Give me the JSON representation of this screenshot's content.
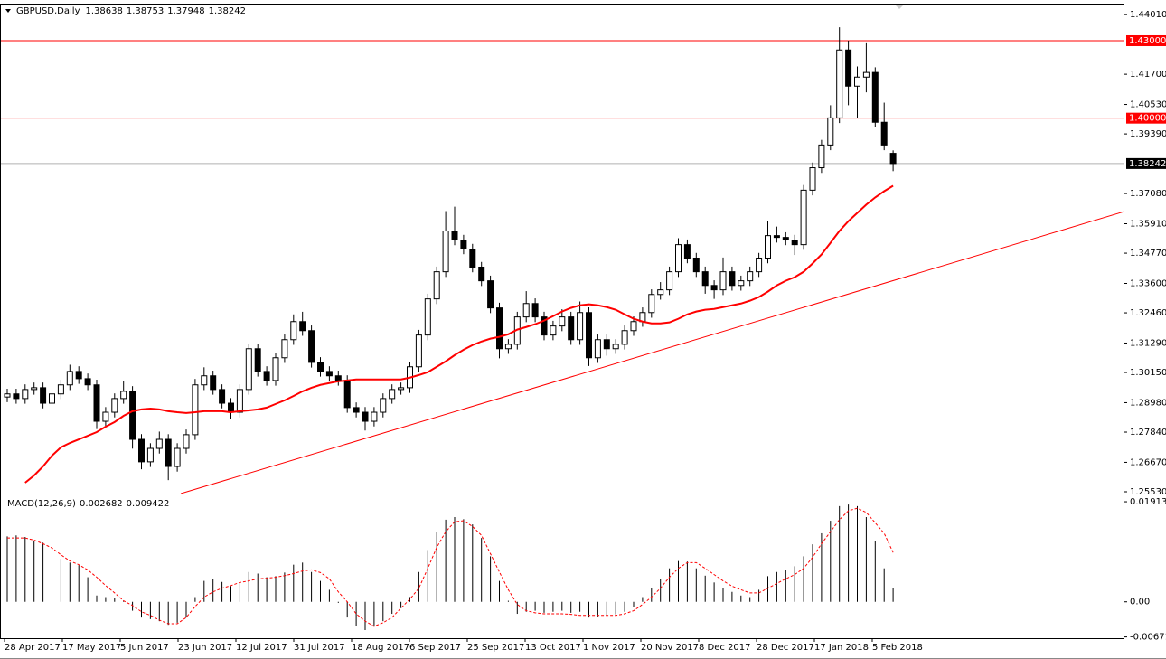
{
  "chart_data": [
    {
      "type": "candlestick",
      "title": "GBPUSD,Daily",
      "open": [
        1.292,
        1.2932,
        1.2914,
        1.2949,
        1.2956,
        1.2896,
        1.2932,
        1.2967,
        1.3019,
        1.2991,
        1.2967,
        1.2826,
        1.2861,
        1.2914,
        1.2942,
        1.2756,
        1.2669,
        1.2721,
        1.2756,
        1.2651,
        1.2721,
        1.2774,
        1.2967,
        1.3002,
        1.2949,
        1.2896,
        1.2861,
        1.2949,
        1.3107,
        1.3019,
        1.2984,
        1.3072,
        1.3142,
        1.3212,
        1.3177,
        1.3054,
        1.3019,
        1.3002,
        1.2984,
        1.2879,
        1.2861,
        1.2826,
        1.2861,
        1.2914,
        1.2949,
        1.2956,
        1.3037,
        1.316,
        1.33,
        1.3405,
        1.3563,
        1.3528,
        1.3493,
        1.3423,
        1.337,
        1.3265,
        1.3107,
        1.3124,
        1.323,
        1.3282,
        1.323,
        1.316,
        1.3195,
        1.323,
        1.3142,
        1.3247,
        1.3072,
        1.3142,
        1.3107,
        1.3124,
        1.3177,
        1.3212,
        1.3247,
        1.3317,
        1.3335,
        1.3405,
        1.351,
        1.3458,
        1.3405,
        1.3352,
        1.3335,
        1.3405,
        1.3352,
        1.337,
        1.3405,
        1.3458,
        1.3545,
        1.3538,
        1.3528,
        1.351,
        1.3721,
        1.3808,
        1.3896,
        1.4001,
        1.4264,
        1.4124,
        1.4159,
        1.4177,
        1.3984,
        1.38638
      ],
      "high": [
        1.2952,
        1.2952,
        1.2969,
        1.2976,
        1.2976,
        1.2952,
        1.2987,
        1.3045,
        1.3039,
        1.3011,
        1.2987,
        1.2881,
        1.2934,
        1.2982,
        1.2962,
        1.2776,
        1.2741,
        1.2786,
        1.2776,
        1.2741,
        1.2794,
        1.299,
        1.3035,
        1.3022,
        1.2969,
        1.2916,
        1.2969,
        1.3127,
        1.3127,
        1.3039,
        1.3092,
        1.3162,
        1.324,
        1.325,
        1.3197,
        1.3074,
        1.3039,
        1.3022,
        1.3004,
        1.2899,
        1.2881,
        1.2881,
        1.2934,
        1.2969,
        1.2976,
        1.3057,
        1.318,
        1.332,
        1.3425,
        1.364,
        1.3657,
        1.3548,
        1.3513,
        1.3443,
        1.339,
        1.3285,
        1.3144,
        1.325,
        1.333,
        1.3302,
        1.325,
        1.3215,
        1.326,
        1.325,
        1.329,
        1.3267,
        1.3162,
        1.3162,
        1.3144,
        1.3197,
        1.3232,
        1.3267,
        1.3337,
        1.3365,
        1.3425,
        1.3535,
        1.353,
        1.3478,
        1.3425,
        1.3372,
        1.346,
        1.3425,
        1.339,
        1.3425,
        1.3478,
        1.36,
        1.358,
        1.3558,
        1.3548,
        1.3741,
        1.3828,
        1.3916,
        1.405,
        1.4352,
        1.43,
        1.42,
        1.429,
        1.4197,
        1.406,
        1.38753
      ],
      "low": [
        1.29,
        1.2894,
        1.2894,
        1.2929,
        1.2876,
        1.2876,
        1.2912,
        1.2947,
        1.2971,
        1.2947,
        1.2796,
        1.2806,
        1.2841,
        1.2894,
        1.272,
        1.264,
        1.2649,
        1.2701,
        1.2598,
        1.2631,
        1.2701,
        1.2754,
        1.2947,
        1.2929,
        1.2876,
        1.2836,
        1.2841,
        1.2929,
        1.2999,
        1.2964,
        1.2964,
        1.3052,
        1.3122,
        1.3157,
        1.3034,
        1.2999,
        1.2982,
        1.2964,
        1.2859,
        1.2841,
        1.279,
        1.2806,
        1.2841,
        1.2894,
        1.2929,
        1.2936,
        1.3017,
        1.314,
        1.328,
        1.3385,
        1.3508,
        1.3473,
        1.3403,
        1.335,
        1.3245,
        1.307,
        1.3087,
        1.3104,
        1.321,
        1.321,
        1.314,
        1.314,
        1.3175,
        1.3122,
        1.3122,
        1.304,
        1.3052,
        1.308,
        1.3087,
        1.3104,
        1.3157,
        1.3192,
        1.3227,
        1.3297,
        1.3315,
        1.3385,
        1.3438,
        1.3385,
        1.332,
        1.33,
        1.3315,
        1.3332,
        1.3332,
        1.335,
        1.3385,
        1.3438,
        1.3518,
        1.3508,
        1.347,
        1.349,
        1.3701,
        1.3788,
        1.3876,
        1.3981,
        1.405,
        1.4,
        1.41,
        1.3964,
        1.3876,
        1.37948
      ],
      "close": [
        1.2932,
        1.2914,
        1.2949,
        1.2956,
        1.2896,
        1.2932,
        1.2967,
        1.3019,
        1.2991,
        1.2967,
        1.2826,
        1.2861,
        1.2914,
        1.2942,
        1.2756,
        1.2669,
        1.2721,
        1.2756,
        1.2651,
        1.2721,
        1.2774,
        1.2967,
        1.3002,
        1.2949,
        1.2896,
        1.2861,
        1.2949,
        1.3107,
        1.3019,
        1.2984,
        1.3072,
        1.3142,
        1.3212,
        1.3177,
        1.3054,
        1.3019,
        1.3002,
        1.2984,
        1.2879,
        1.2861,
        1.2826,
        1.2861,
        1.2914,
        1.2949,
        1.2956,
        1.3037,
        1.316,
        1.33,
        1.3405,
        1.3563,
        1.3528,
        1.3493,
        1.3423,
        1.337,
        1.3265,
        1.3107,
        1.3124,
        1.323,
        1.3282,
        1.323,
        1.316,
        1.3195,
        1.323,
        1.3142,
        1.3247,
        1.3072,
        1.3142,
        1.3107,
        1.3124,
        1.3177,
        1.3212,
        1.3247,
        1.3317,
        1.3335,
        1.3405,
        1.351,
        1.3458,
        1.3405,
        1.3352,
        1.3335,
        1.3405,
        1.3352,
        1.337,
        1.3405,
        1.3458,
        1.3545,
        1.3538,
        1.3528,
        1.351,
        1.3721,
        1.3808,
        1.3896,
        1.4001,
        1.4264,
        1.4124,
        1.4159,
        1.4177,
        1.3984,
        1.3896,
        1.38242
      ],
      "up_color": "#ffffff",
      "down_color": "#000000",
      "wick_color": "#000000",
      "moving_average": {
        "color": "#ff0000",
        "values": [
          null,
          null,
          1.2588,
          1.2616,
          1.2651,
          1.2693,
          1.2725,
          1.2742,
          1.2756,
          1.277,
          1.2784,
          1.2805,
          1.2823,
          1.2847,
          1.2865,
          1.2872,
          1.2875,
          1.2872,
          1.2865,
          1.2861,
          1.2858,
          1.2861,
          1.2865,
          1.2865,
          1.2865,
          1.2861,
          1.2865,
          1.2868,
          1.2872,
          1.2879,
          1.2893,
          1.2907,
          1.2924,
          1.2942,
          1.2956,
          1.2967,
          1.2974,
          1.2981,
          1.2984,
          1.2988,
          1.2988,
          1.2988,
          1.2988,
          1.2988,
          1.2988,
          1.2995,
          1.3005,
          1.3016,
          1.3037,
          1.3058,
          1.3082,
          1.3103,
          1.3121,
          1.3135,
          1.3146,
          1.3153,
          1.3163,
          1.3181,
          1.3191,
          1.3202,
          1.3216,
          1.3233,
          1.3251,
          1.3265,
          1.3275,
          1.3279,
          1.3275,
          1.3268,
          1.3258,
          1.324,
          1.3223,
          1.3212,
          1.3205,
          1.3205,
          1.3209,
          1.3223,
          1.324,
          1.3251,
          1.3258,
          1.3261,
          1.3268,
          1.3275,
          1.3282,
          1.3293,
          1.3307,
          1.3328,
          1.3352,
          1.337,
          1.3384,
          1.3405,
          1.3437,
          1.3472,
          1.3517,
          1.3563,
          1.3601,
          1.3633,
          1.3665,
          1.3693,
          1.3717,
          1.3738
        ]
      },
      "levels": [
        {
          "value": 1.43,
          "label": "1.43000"
        },
        {
          "value": 1.4,
          "label": "1.40000"
        }
      ],
      "level_color": "#ff0000",
      "trendline": {
        "from": {
          "bar": 19.4,
          "price": 1.2546
        },
        "to": {
          "bar": 125,
          "price": 1.364
        }
      },
      "ylim": [
        1.2546,
        1.444
      ],
      "yticks": [
        {
          "value": 1.4401,
          "label": "1.44010"
        },
        {
          "value": 1.417,
          "label": "1.41700"
        },
        {
          "value": 1.4053,
          "label": "1.40530"
        },
        {
          "value": 1.3939,
          "label": "1.39390"
        },
        {
          "value": 1.3708,
          "label": "1.37080"
        },
        {
          "value": 1.3591,
          "label": "1.35910"
        },
        {
          "value": 1.3477,
          "label": "1.34770"
        },
        {
          "value": 1.336,
          "label": "1.33600"
        },
        {
          "value": 1.3246,
          "label": "1.32460"
        },
        {
          "value": 1.3129,
          "label": "1.31290"
        },
        {
          "value": 1.3015,
          "label": "1.30150"
        },
        {
          "value": 1.2898,
          "label": "1.28980"
        },
        {
          "value": 1.2784,
          "label": "1.27840"
        },
        {
          "value": 1.2667,
          "label": "1.26670"
        },
        {
          "value": 1.2553,
          "label": "1.25530"
        }
      ],
      "x_labels": [
        "28 Apr 2017",
        "17 May 2017",
        "5 Jun 2017",
        "23 Jun 2017",
        "12 Jul 2017",
        "31 Jul 2017",
        "18 Aug 2017",
        "6 Sep 2017",
        "25 Sep 2017",
        "13 Oct 2017",
        "1 Nov 2017",
        "20 Nov 2017",
        "8 Dec 2017",
        "28 Dec 2017",
        "17 Jan 2018",
        "5 Feb 2018"
      ]
    },
    {
      "type": "macd",
      "title": "MACD(12,26,9)",
      "histogram": {
        "color": "#000000",
        "values": [
          0.0125,
          0.0127,
          0.0124,
          0.0117,
          0.0113,
          0.0104,
          0.0082,
          0.0075,
          0.007,
          0.0047,
          0.0012,
          0.0009,
          0.0007,
          0.0002,
          -0.0017,
          -0.003,
          -0.0033,
          -0.0037,
          -0.0044,
          -0.004,
          -0.003,
          0.0009,
          0.004,
          0.0044,
          0.0038,
          0.003,
          0.0035,
          0.0057,
          0.0054,
          0.0047,
          0.0049,
          0.0056,
          0.0071,
          0.0075,
          0.0057,
          0.004,
          0.0023,
          -0.0002,
          -0.003,
          -0.0047,
          -0.0054,
          -0.0047,
          -0.0037,
          -0.0023,
          -0.0012,
          0.0009,
          0.0057,
          0.0099,
          0.0134,
          0.0157,
          0.0162,
          0.0158,
          0.0148,
          0.0122,
          0.0087,
          0.004,
          0.0002,
          -0.0023,
          -0.0019,
          -0.0017,
          -0.0021,
          -0.0019,
          -0.0017,
          -0.0021,
          -0.0019,
          -0.003,
          -0.0028,
          -0.0026,
          -0.0024,
          -0.0019,
          -0.0009,
          0.0009,
          0.0026,
          0.0044,
          0.0064,
          0.0078,
          0.0077,
          0.0064,
          0.005,
          0.0037,
          0.0026,
          0.0019,
          0.0012,
          0.0009,
          0.0023,
          0.0049,
          0.0057,
          0.0061,
          0.0068,
          0.0087,
          0.011,
          0.0131,
          0.0155,
          0.0183,
          0.0186,
          0.0183,
          0.0162,
          0.0117,
          0.0064,
          0.002682
        ]
      },
      "signal": {
        "color": "#ff0000",
        "values": [
          0.0122,
          0.0122,
          0.0122,
          0.0118,
          0.0111,
          0.0103,
          0.009,
          0.0078,
          0.0071,
          0.0061,
          0.0047,
          0.0031,
          0.0017,
          0.0002,
          -0.0007,
          -0.0019,
          -0.0026,
          -0.0035,
          -0.0042,
          -0.0042,
          -0.003,
          -0.0009,
          0.0009,
          0.0019,
          0.0026,
          0.0031,
          0.0037,
          0.004,
          0.0044,
          0.0045,
          0.0047,
          0.005,
          0.0054,
          0.0059,
          0.0061,
          0.0056,
          0.0044,
          0.0019,
          0.0,
          -0.0023,
          -0.0037,
          -0.0047,
          -0.004,
          -0.003,
          -0.0012,
          0.0005,
          0.0026,
          0.0064,
          0.0104,
          0.0134,
          0.0153,
          0.0155,
          0.0144,
          0.0127,
          0.0092,
          0.0057,
          0.0023,
          -0.0005,
          -0.0017,
          -0.0021,
          -0.0023,
          -0.0023,
          -0.0023,
          -0.0024,
          -0.0026,
          -0.0026,
          -0.0026,
          -0.0026,
          -0.0026,
          -0.0023,
          -0.0017,
          -0.0005,
          0.0009,
          0.0026,
          0.0047,
          0.0064,
          0.0075,
          0.0075,
          0.0064,
          0.0052,
          0.004,
          0.003,
          0.0023,
          0.0017,
          0.0017,
          0.0026,
          0.0035,
          0.0044,
          0.0052,
          0.0064,
          0.0085,
          0.0111,
          0.0134,
          0.0157,
          0.0174,
          0.0179,
          0.0171,
          0.0151,
          0.0131,
          0.009422
        ]
      },
      "ylim": [
        -0.00696,
        0.02035
      ],
      "yticks": [
        0.019133,
        {
          "value": 0,
          "label": "0.00"
        },
        -0.006718
      ]
    }
  ]
}
